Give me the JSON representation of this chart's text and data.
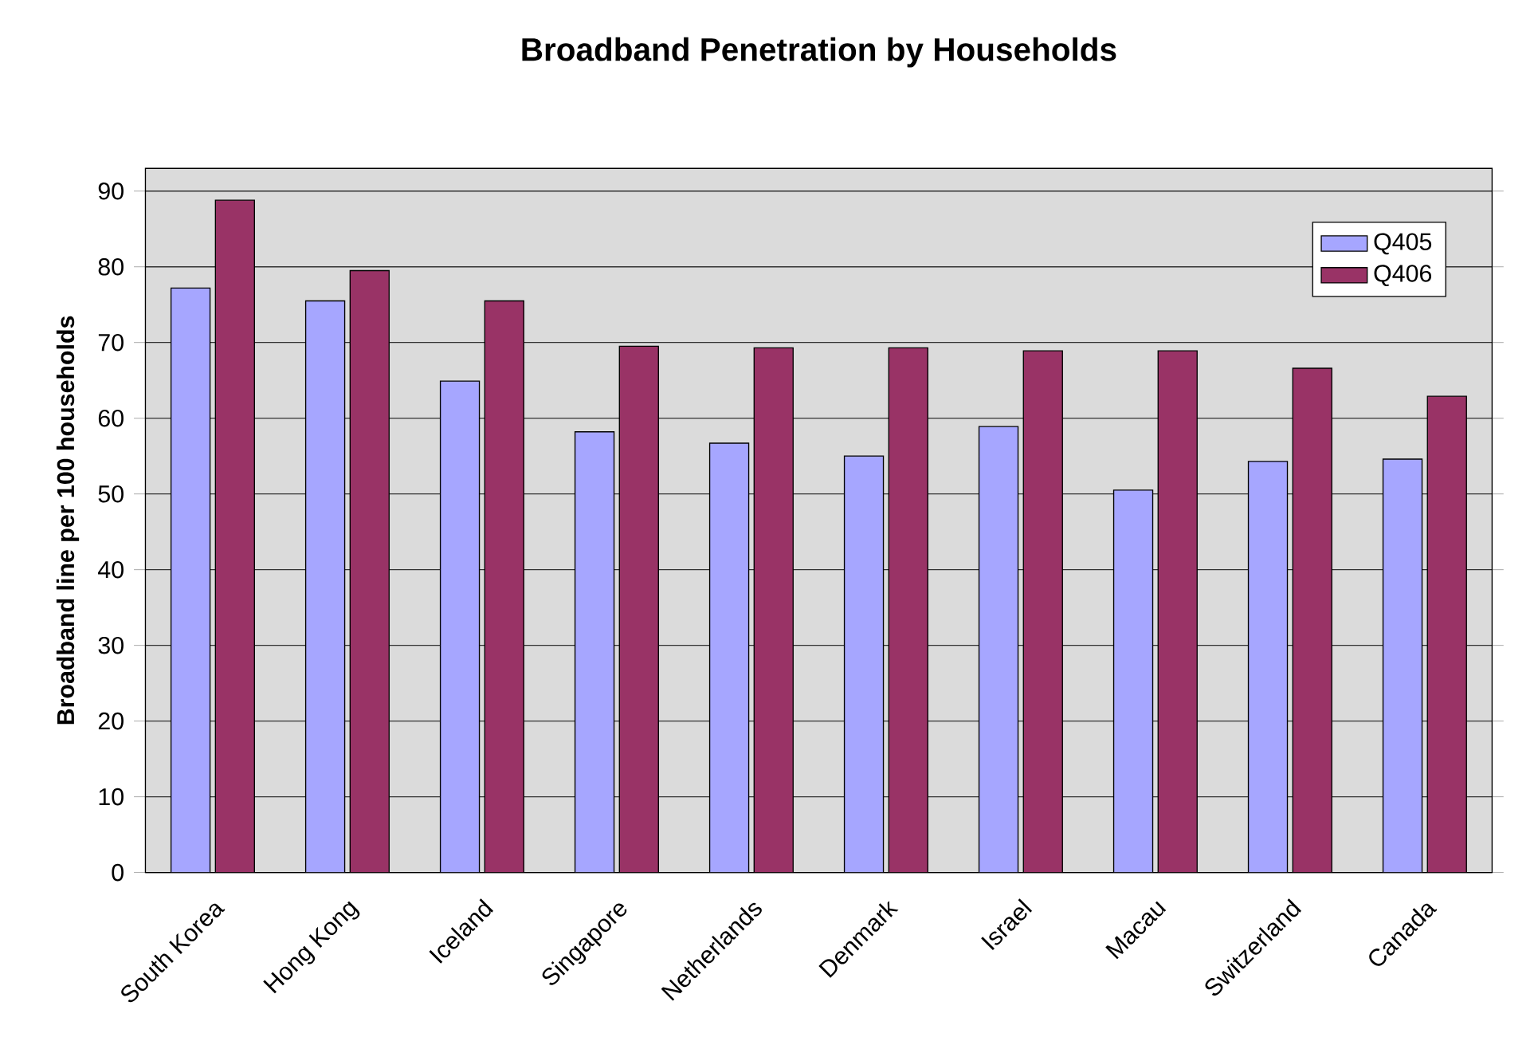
{
  "chart_data": {
    "type": "bar",
    "title": "Broadband Penetration by Households",
    "ylabel": "Broadband line per 100 households",
    "categories": [
      "South Korea",
      "Hong Kong",
      "Iceland",
      "Singapore",
      "Netherlands",
      "Denmark",
      "Israel",
      "Macau",
      "Switzerland",
      "Canada"
    ],
    "series": [
      {
        "name": "Q405",
        "color": "#a6a6ff",
        "values": [
          77.2,
          75.5,
          64.9,
          58.2,
          56.7,
          55.0,
          58.9,
          50.5,
          54.3,
          54.6
        ]
      },
      {
        "name": "Q406",
        "color": "#993366",
        "values": [
          88.8,
          79.5,
          75.5,
          69.5,
          69.3,
          69.3,
          68.9,
          68.9,
          66.6,
          62.9
        ]
      }
    ],
    "ylim": [
      0,
      93
    ],
    "yticks": [
      0,
      10,
      20,
      30,
      40,
      50,
      60,
      70,
      80,
      90
    ],
    "grid": "y",
    "legend": "top right"
  }
}
